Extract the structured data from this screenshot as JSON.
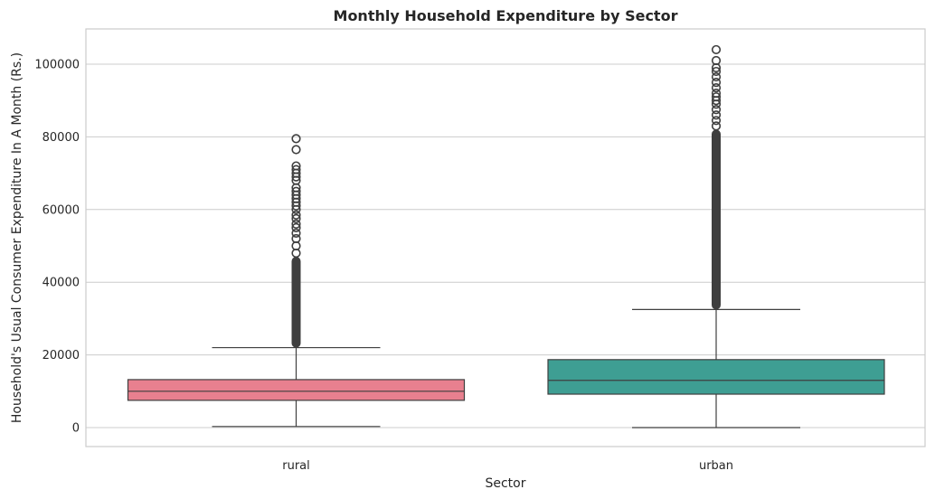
{
  "chart_data": {
    "type": "box",
    "title": "Monthly Household Expenditure by Sector",
    "xlabel": "Sector",
    "ylabel": "Household's Usual Consumer Expenditure In A Month (Rs.)",
    "ylim": [
      -5000,
      110000
    ],
    "yticks": [
      0,
      20000,
      40000,
      60000,
      80000,
      100000
    ],
    "grid": "horizontal",
    "categories": [
      "rural",
      "urban"
    ],
    "series": [
      {
        "category": "rural",
        "color": "#e8808f",
        "whisker_low": 300,
        "q1": 7500,
        "median": 10000,
        "q3": 13200,
        "whisker_high": 22000,
        "outliers_dense_range": [
          22000,
          47000
        ],
        "outliers": [
          48000,
          50000,
          52000,
          53500,
          55000,
          56000,
          57500,
          58500,
          60000,
          61000,
          62000,
          63000,
          64000,
          65000,
          66000,
          68000,
          69000,
          70000,
          71000,
          72000,
          76500,
          79500
        ]
      },
      {
        "category": "urban",
        "color": "#3e9e93",
        "whisker_low": 0,
        "q1": 9200,
        "median": 13000,
        "q3": 18700,
        "whisker_high": 32500,
        "outliers_dense_range": [
          32500,
          82000
        ],
        "outliers": [
          83000,
          84500,
          86000,
          87500,
          89000,
          90000,
          91000,
          92000,
          93500,
          95000,
          96500,
          98000,
          99000,
          101000,
          104000
        ]
      }
    ]
  }
}
